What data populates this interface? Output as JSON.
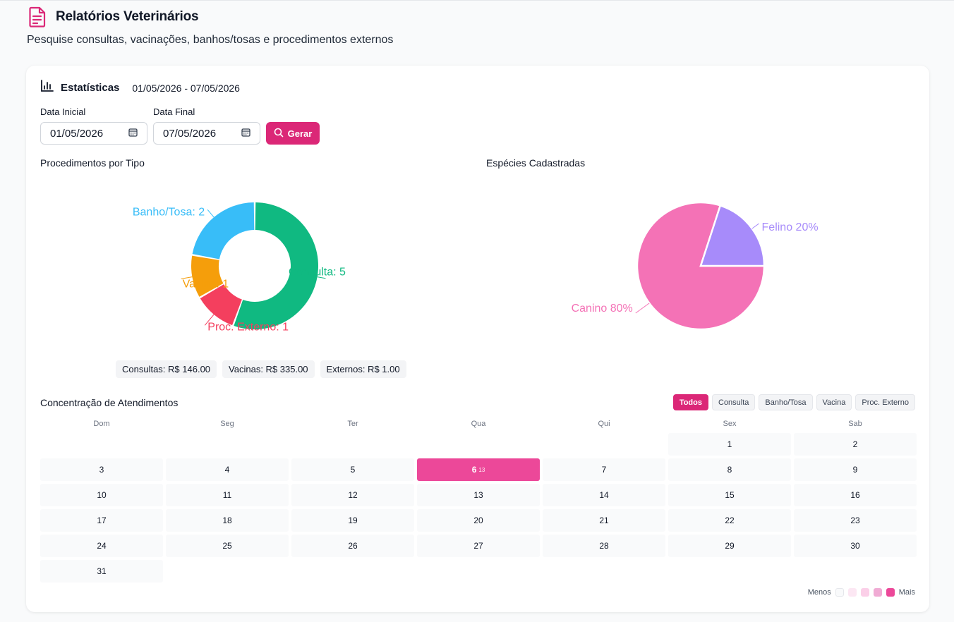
{
  "header": {
    "title": "Relatórios Veterinários",
    "subtitle": "Pesquise consultas, vacinações, banhos/tosas e procedimentos externos"
  },
  "stats": {
    "title": "Estatísticas",
    "range": "01/05/2026 - 07/05/2026"
  },
  "form": {
    "start_label": "Data Inicial",
    "start_value": "01/05/2026",
    "end_label": "Data Final",
    "end_value": "07/05/2026",
    "generate_label": "Gerar"
  },
  "procedures": {
    "title": "Procedimentos por Tipo",
    "totals": [
      "Consultas: R$ 146.00",
      "Vacinas: R$ 335.00",
      "Externos: R$ 1.00"
    ]
  },
  "species": {
    "title": "Espécies Cadastradas"
  },
  "calendar": {
    "title": "Concentração de Atendimentos",
    "filters": [
      "Todos",
      "Consulta",
      "Banho/Tosa",
      "Vacina",
      "Proc. Externo"
    ],
    "active_filter": "Todos",
    "weekdays": [
      "Dom",
      "Seg",
      "Ter",
      "Qua",
      "Qui",
      "Sex",
      "Sab"
    ],
    "first_weekday_index": 5,
    "days_in_month": 31,
    "highlight_day": 6,
    "highlight_count": "13",
    "legend_less": "Menos",
    "legend_more": "Mais",
    "legend_colors": [
      "#f9fafb",
      "#fce7f3",
      "#fbcfe8",
      "#f0abd4",
      "#ec4899"
    ]
  },
  "chart_data": [
    {
      "type": "pie",
      "variant": "donut",
      "title": "Procedimentos por Tipo",
      "slices": [
        {
          "label": "Consulta",
          "value": 5,
          "display": "Consulta: 5",
          "color": "#10b981"
        },
        {
          "label": "Proc. Externo",
          "value": 1,
          "display": "Proc. Externo: 1",
          "color": "#f43f5e"
        },
        {
          "label": "Vacina",
          "value": 1,
          "display": "Vacina: 1",
          "color": "#f59e0b"
        },
        {
          "label": "Banho/Tosa",
          "value": 2,
          "display": "Banho/Tosa: 2",
          "color": "#38bdf8"
        }
      ]
    },
    {
      "type": "pie",
      "title": "Espécies Cadastradas",
      "slices": [
        {
          "label": "Canino",
          "value": 80,
          "display": "Canino 80%",
          "color": "#f472b6"
        },
        {
          "label": "Felino",
          "value": 20,
          "display": "Felino 20%",
          "color": "#a78bfa"
        }
      ]
    }
  ]
}
